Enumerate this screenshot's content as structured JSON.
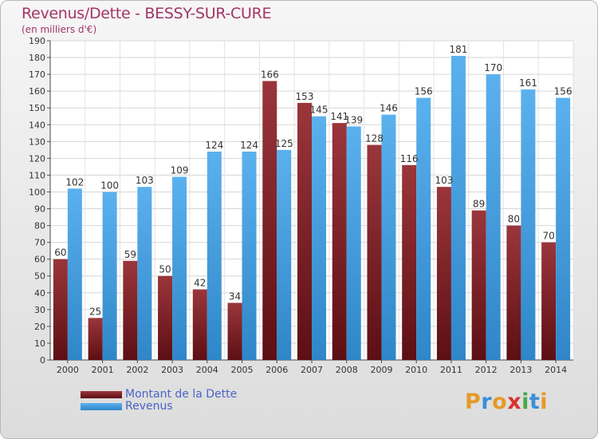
{
  "header": {
    "title": "Revenus/Dette - BESSY-SUR-CURE",
    "subtitle": "(en milliers d'€)"
  },
  "legend": {
    "dette_label": "Montant de la Dette",
    "revenus_label": "Revenus"
  },
  "logo": {
    "letters": [
      "P",
      "r",
      "o",
      "x",
      "i",
      "t",
      "i"
    ],
    "colors": [
      "#e59a27",
      "#3c8ed6",
      "#e59a27",
      "#d9322d",
      "#4aa84a",
      "#3c8ed6",
      "#e59a27"
    ]
  },
  "colors": {
    "dette": "#7a1f24",
    "revenus": "#4ea6e6",
    "title": "#a23565",
    "legend_text": "#4a63c8"
  },
  "chart_data": {
    "type": "bar",
    "title": "Revenus/Dette - BESSY-SUR-CURE",
    "subtitle": "(en milliers d'€)",
    "xlabel": "",
    "ylabel": "",
    "ylim": [
      0,
      190
    ],
    "ytick_step": 10,
    "grid": true,
    "legend_position": "bottom-left",
    "categories": [
      "2000",
      "2001",
      "2002",
      "2003",
      "2004",
      "2005",
      "2006",
      "2007",
      "2008",
      "2009",
      "2010",
      "2011",
      "2012",
      "2013",
      "2014"
    ],
    "series": [
      {
        "name": "Montant de la Dette",
        "values": [
          60,
          25,
          59,
          50,
          42,
          34,
          166,
          153,
          141,
          128,
          116,
          103,
          89,
          80,
          70
        ]
      },
      {
        "name": "Revenus",
        "values": [
          102,
          100,
          103,
          109,
          124,
          124,
          125,
          145,
          139,
          146,
          156,
          181,
          170,
          161,
          156
        ]
      }
    ]
  }
}
